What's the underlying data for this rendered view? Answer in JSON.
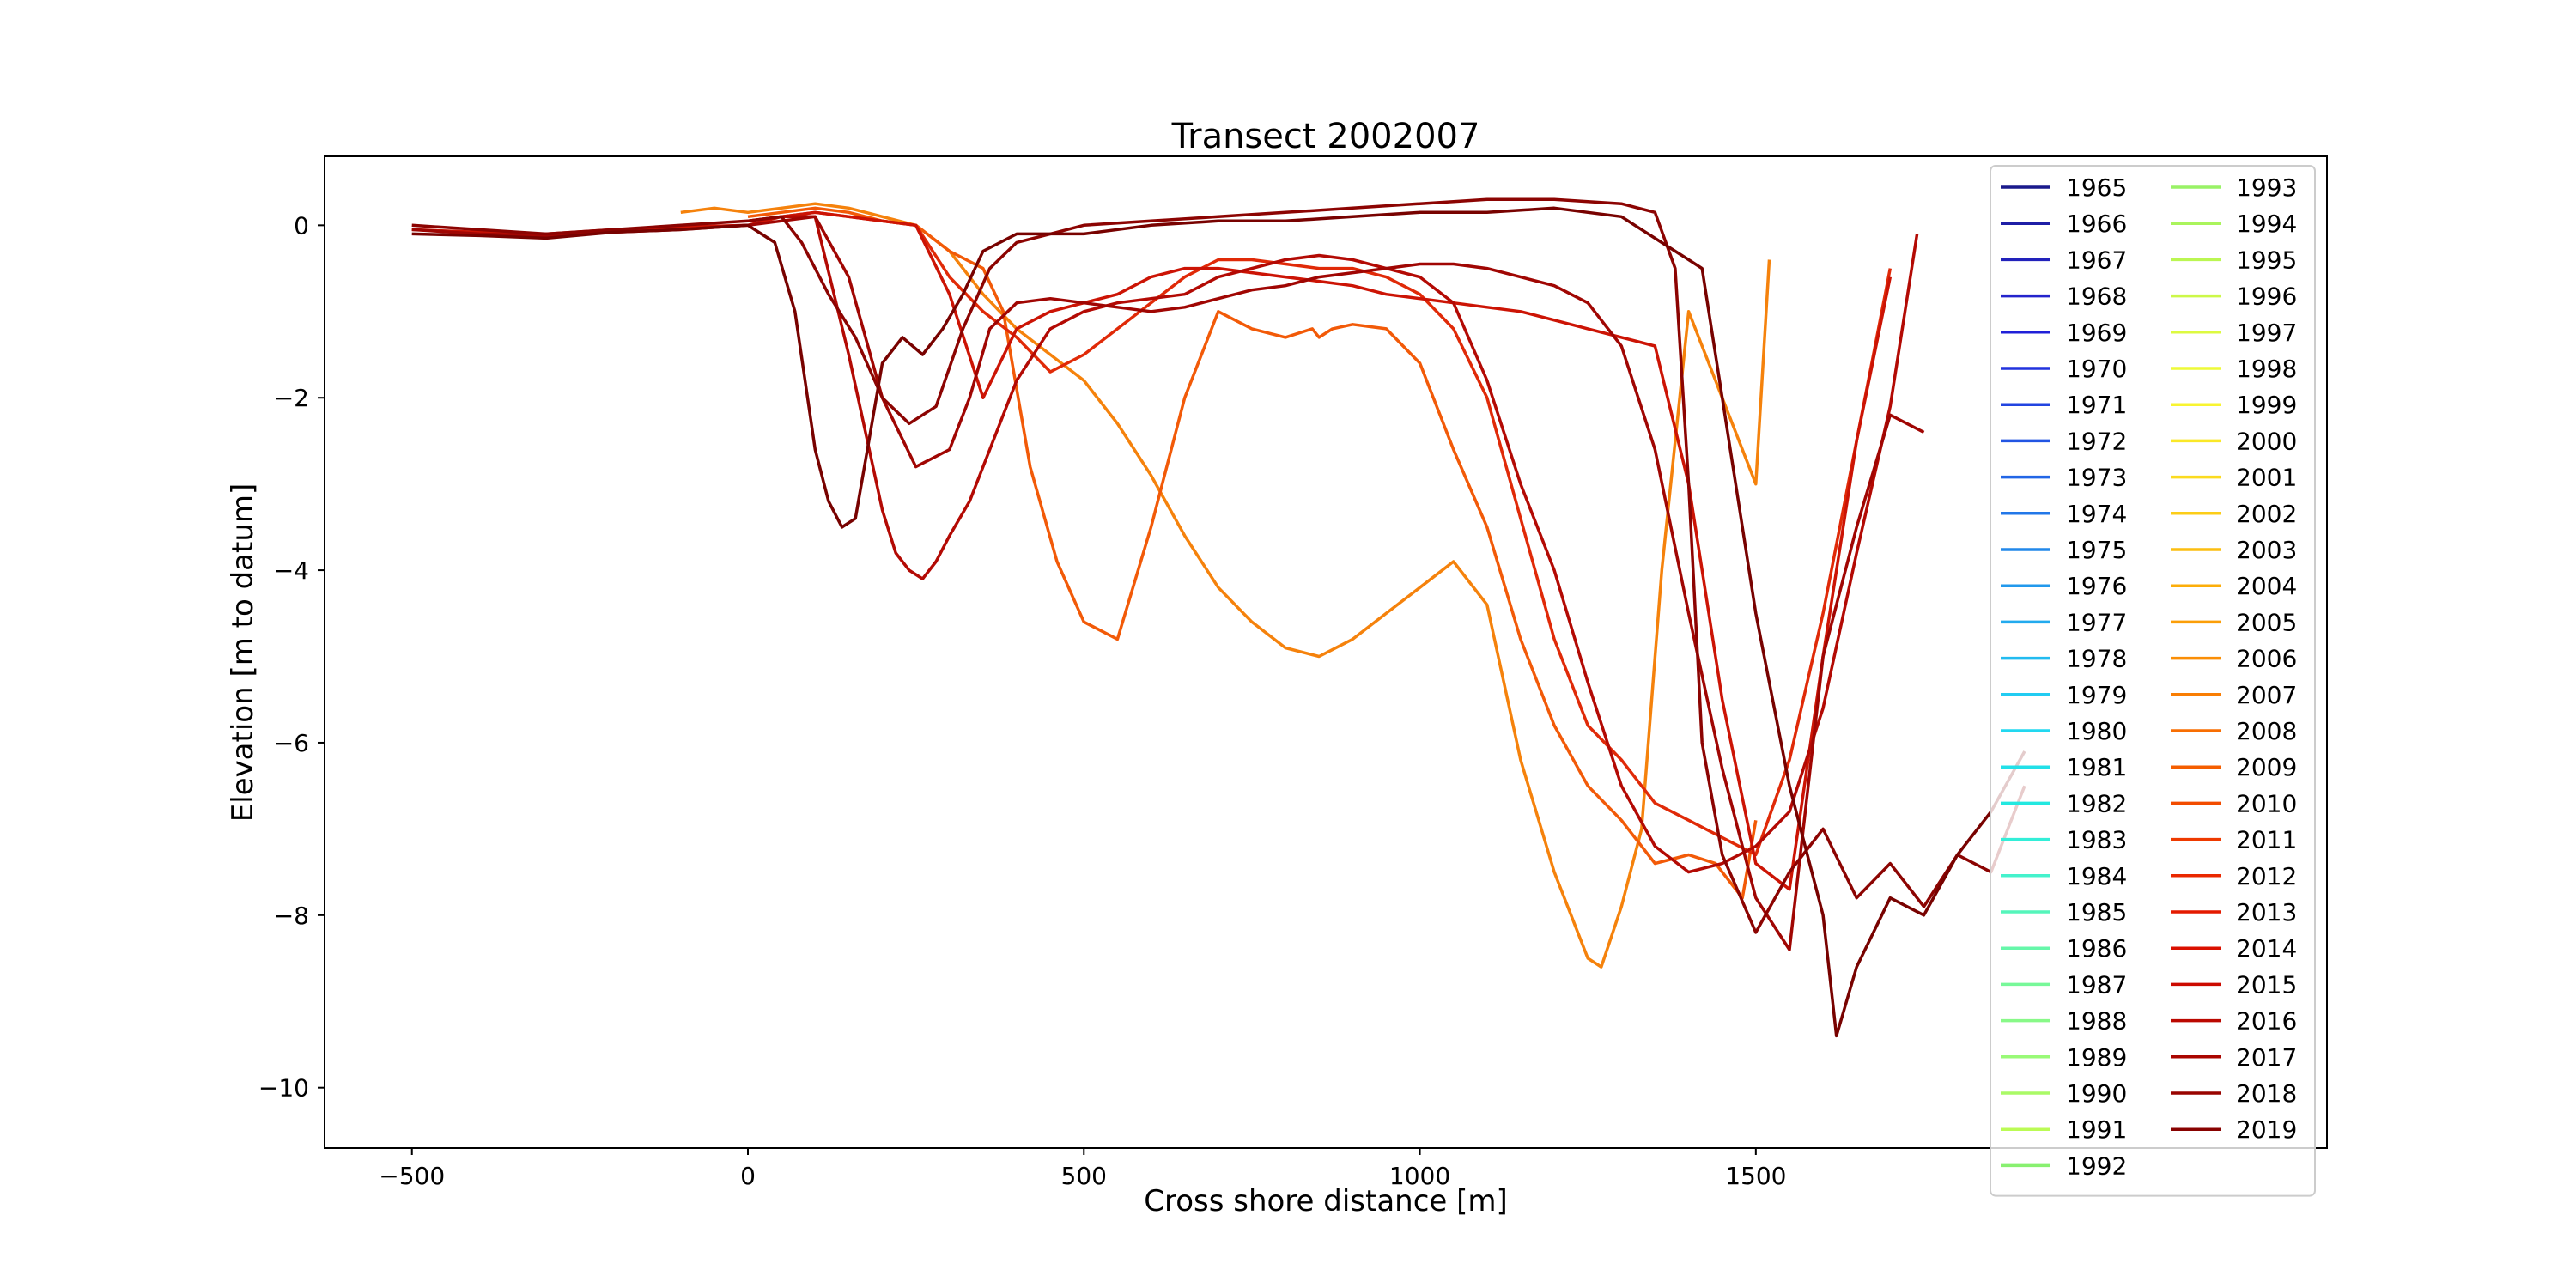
{
  "chart_data": {
    "type": "line",
    "title": "Transect 2002007",
    "xlabel": "Cross shore distance [m]",
    "ylabel": "Elevation [m to datum]",
    "xlim": [
      -630,
      2350
    ],
    "ylim": [
      -10.7,
      0.8
    ],
    "x_ticks": [
      -500,
      0,
      500,
      1000,
      1500
    ],
    "x_tick_labels": [
      "−500",
      "0",
      "500",
      "1000",
      "1500"
    ],
    "y_ticks": [
      0,
      -2,
      -4,
      -6,
      -8,
      -10
    ],
    "y_tick_labels": [
      "0",
      "−2",
      "−4",
      "−6",
      "−8",
      "−10"
    ],
    "grid": false,
    "legend": {
      "placement": "right",
      "columns": 2,
      "entries": [
        "1965",
        "1966",
        "1967",
        "1968",
        "1969",
        "1970",
        "1971",
        "1972",
        "1973",
        "1974",
        "1975",
        "1976",
        "1977",
        "1978",
        "1979",
        "1980",
        "1981",
        "1982",
        "1983",
        "1984",
        "1985",
        "1986",
        "1987",
        "1988",
        "1989",
        "1990",
        "1991",
        "1992",
        "1993",
        "1994",
        "1995",
        "1996",
        "1997",
        "1998",
        "1999",
        "2000",
        "2001",
        "2002",
        "2003",
        "2004",
        "2005",
        "2006",
        "2007",
        "2008",
        "2009",
        "2010",
        "2011",
        "2012",
        "2013",
        "2014",
        "2015",
        "2016",
        "2017",
        "2018",
        "2019"
      ],
      "colors": [
        "#1a1a8c",
        "#1f1fa6",
        "#2222bb",
        "#2424cc",
        "#2020d8",
        "#2233dd",
        "#2244e0",
        "#2255e3",
        "#2266e6",
        "#2277e8",
        "#2288ea",
        "#2299ec",
        "#22aaee",
        "#22bbf0",
        "#22ccf2",
        "#22d8f0",
        "#22e0e8",
        "#22e8e0",
        "#33eed8",
        "#44f2cc",
        "#55f5bb",
        "#66f7aa",
        "#77f899",
        "#88f988",
        "#99fa77",
        "#aafa66",
        "#bbfb55",
        "#88f070",
        "#99f266",
        "#aaf45c",
        "#bbf652",
        "#ccf848",
        "#ddfa40",
        "#eefa38",
        "#f8f430",
        "#fae828",
        "#fbdb20",
        "#fccd18",
        "#fcbe10",
        "#fcae0a",
        "#fb9e08",
        "#fa8e06",
        "#f97e04",
        "#f86e02",
        "#f55e00",
        "#f24c00",
        "#ee3a00",
        "#ea2800",
        "#e41a00",
        "#da1000",
        "#cc0a00",
        "#bb0800",
        "#aa0600",
        "#990400",
        "#880200"
      ]
    },
    "series": [
      {
        "name": "2007",
        "color": "#f5820c",
        "x": [
          -100,
          -50,
          0,
          50,
          100,
          150,
          200,
          250,
          300,
          350,
          400,
          450,
          500,
          550,
          600,
          650,
          700,
          750,
          800,
          850,
          900,
          950,
          1000,
          1050,
          1100,
          1150,
          1200,
          1250,
          1270,
          1300,
          1330,
          1360,
          1400,
          1450,
          1500,
          1520
        ],
        "y": [
          0.15,
          0.2,
          0.15,
          0.2,
          0.25,
          0.2,
          0.1,
          0,
          -0.3,
          -0.8,
          -1.2,
          -1.5,
          -1.8,
          -2.3,
          -2.9,
          -3.6,
          -4.2,
          -4.6,
          -4.9,
          -5.0,
          -4.8,
          -4.5,
          -4.2,
          -3.9,
          -4.4,
          -6.2,
          -7.5,
          -8.5,
          -8.6,
          -7.9,
          -7.0,
          -4.0,
          -1.0,
          -2.0,
          -3.0,
          -0.4
        ]
      },
      {
        "name": "2010",
        "color": "#f25a08",
        "x": [
          0,
          50,
          100,
          150,
          200,
          250,
          300,
          350,
          380,
          420,
          460,
          500,
          550,
          600,
          650,
          700,
          750,
          800,
          840,
          850,
          870,
          900,
          950,
          1000,
          1050,
          1100,
          1150,
          1200,
          1250,
          1300,
          1350,
          1400,
          1440,
          1480,
          1500
        ],
        "y": [
          0.1,
          0.15,
          0.2,
          0.15,
          0.05,
          0,
          -0.3,
          -0.5,
          -1.0,
          -2.8,
          -3.9,
          -4.6,
          -4.8,
          -3.5,
          -2.0,
          -1.0,
          -1.2,
          -1.3,
          -1.2,
          -1.3,
          -1.2,
          -1.15,
          -1.2,
          -1.6,
          -2.6,
          -3.5,
          -4.8,
          -5.8,
          -6.5,
          -6.9,
          -7.4,
          -7.3,
          -7.4,
          -7.8,
          -6.9
        ]
      },
      {
        "name": "2012",
        "color": "#e02a08",
        "x": [
          0,
          50,
          100,
          150,
          200,
          250,
          300,
          350,
          400,
          450,
          500,
          550,
          600,
          650,
          700,
          750,
          800,
          850,
          900,
          950,
          1000,
          1050,
          1100,
          1150,
          1200,
          1250,
          1300,
          1350,
          1400,
          1450,
          1500,
          1550,
          1600,
          1650,
          1700
        ],
        "y": [
          0.05,
          0.1,
          0.15,
          0.1,
          0.05,
          0,
          -0.6,
          -1.0,
          -1.3,
          -1.7,
          -1.5,
          -1.2,
          -0.9,
          -0.6,
          -0.4,
          -0.4,
          -0.45,
          -0.5,
          -0.5,
          -0.6,
          -0.8,
          -1.2,
          -2.0,
          -3.4,
          -4.8,
          -5.8,
          -6.2,
          -6.7,
          -6.9,
          -7.1,
          -7.3,
          -6.2,
          -4.5,
          -2.5,
          -0.5
        ]
      },
      {
        "name": "2014",
        "color": "#cc1405",
        "x": [
          -500,
          -400,
          -300,
          -200,
          -100,
          0,
          50,
          100,
          150,
          200,
          250,
          300,
          350,
          400,
          450,
          500,
          550,
          600,
          650,
          700,
          750,
          800,
          850,
          900,
          950,
          1000,
          1050,
          1100,
          1150,
          1200,
          1250,
          1300,
          1350,
          1400,
          1450,
          1500,
          1550,
          1600,
          1650,
          1700
        ],
        "y": [
          -0.05,
          -0.08,
          -0.1,
          -0.05,
          -0.02,
          0,
          0.1,
          0.15,
          0.1,
          0.05,
          0,
          -0.8,
          -2.0,
          -1.2,
          -1.0,
          -0.9,
          -0.8,
          -0.6,
          -0.5,
          -0.5,
          -0.55,
          -0.6,
          -0.65,
          -0.7,
          -0.8,
          -0.85,
          -0.9,
          -0.95,
          -1.0,
          -1.1,
          -1.2,
          -1.3,
          -1.4,
          -3.0,
          -5.5,
          -7.4,
          -7.7,
          -5.0,
          -2.5,
          -0.6
        ]
      },
      {
        "name": "2016",
        "color": "#b30a04",
        "x": [
          0,
          50,
          100,
          150,
          200,
          220,
          240,
          260,
          280,
          300,
          330,
          360,
          400,
          450,
          500,
          550,
          600,
          650,
          700,
          750,
          800,
          850,
          900,
          950,
          1000,
          1050,
          1100,
          1150,
          1200,
          1250,
          1300,
          1350,
          1400,
          1450,
          1500,
          1550,
          1600,
          1650,
          1700,
          1740
        ],
        "y": [
          0.05,
          0.1,
          0.1,
          -1.5,
          -3.3,
          -3.8,
          -4.0,
          -4.1,
          -3.9,
          -3.6,
          -3.2,
          -2.6,
          -1.8,
          -1.2,
          -1.0,
          -0.9,
          -0.85,
          -0.8,
          -0.6,
          -0.5,
          -0.4,
          -0.35,
          -0.4,
          -0.5,
          -0.6,
          -0.9,
          -1.8,
          -3.0,
          -4.0,
          -5.3,
          -6.5,
          -7.2,
          -7.5,
          -7.4,
          -7.2,
          -6.8,
          -5.6,
          -3.8,
          -2.1,
          -0.1
        ]
      },
      {
        "name": "2017",
        "color": "#a00603",
        "x": [
          -500,
          -400,
          -300,
          -200,
          -100,
          0,
          50,
          100,
          150,
          200,
          250,
          300,
          330,
          360,
          400,
          450,
          500,
          550,
          600,
          650,
          700,
          750,
          800,
          850,
          900,
          950,
          1000,
          1050,
          1100,
          1150,
          1200,
          1250,
          1300,
          1350,
          1400,
          1450,
          1500,
          1550,
          1600,
          1650,
          1700,
          1750
        ],
        "y": [
          -0.05,
          -0.1,
          -0.12,
          -0.08,
          -0.05,
          0,
          0.05,
          0.1,
          -0.6,
          -2.0,
          -2.8,
          -2.6,
          -2.0,
          -1.2,
          -0.9,
          -0.85,
          -0.9,
          -0.95,
          -1.0,
          -0.95,
          -0.85,
          -0.75,
          -0.7,
          -0.6,
          -0.55,
          -0.5,
          -0.45,
          -0.45,
          -0.5,
          -0.6,
          -0.7,
          -0.9,
          -1.4,
          -2.6,
          -4.5,
          -6.3,
          -7.8,
          -8.4,
          -5.0,
          -3.5,
          -2.2,
          -2.4
        ]
      },
      {
        "name": "2018",
        "color": "#8c0402",
        "x": [
          -500,
          -400,
          -300,
          -200,
          -100,
          0,
          50,
          80,
          120,
          160,
          200,
          240,
          280,
          320,
          360,
          400,
          450,
          500,
          600,
          700,
          800,
          900,
          1000,
          1100,
          1200,
          1300,
          1350,
          1380,
          1400,
          1420,
          1450,
          1500,
          1550,
          1600,
          1650,
          1700,
          1750,
          1800,
          1850,
          1900
        ],
        "y": [
          0,
          -0.05,
          -0.1,
          -0.05,
          0,
          0.05,
          0.1,
          -0.2,
          -0.8,
          -1.3,
          -2.0,
          -2.3,
          -2.1,
          -1.2,
          -0.5,
          -0.2,
          -0.1,
          0,
          0.05,
          0.1,
          0.15,
          0.2,
          0.25,
          0.3,
          0.3,
          0.25,
          0.15,
          -0.5,
          -3.0,
          -6.0,
          -7.3,
          -8.2,
          -7.5,
          -7.0,
          -7.8,
          -7.4,
          -7.9,
          -7.3,
          -7.5,
          -6.5
        ]
      },
      {
        "name": "2019",
        "color": "#780200",
        "x": [
          -500,
          -400,
          -300,
          -200,
          -100,
          0,
          40,
          70,
          100,
          120,
          140,
          160,
          180,
          200,
          230,
          260,
          290,
          320,
          350,
          400,
          500,
          600,
          700,
          800,
          900,
          1000,
          1100,
          1200,
          1300,
          1380,
          1400,
          1420,
          1450,
          1500,
          1550,
          1600,
          1620,
          1650,
          1700,
          1750,
          1800,
          1850,
          1900
        ],
        "y": [
          -0.1,
          -0.12,
          -0.15,
          -0.08,
          -0.05,
          0,
          -0.2,
          -1.0,
          -2.6,
          -3.2,
          -3.5,
          -3.4,
          -2.5,
          -1.6,
          -1.3,
          -1.5,
          -1.2,
          -0.8,
          -0.3,
          -0.1,
          -0.1,
          0,
          0.05,
          0.05,
          0.1,
          0.15,
          0.15,
          0.2,
          0.1,
          -0.3,
          -0.4,
          -0.5,
          -2.0,
          -4.5,
          -6.5,
          -8.0,
          -9.4,
          -8.6,
          -7.8,
          -8.0,
          -7.3,
          -6.8,
          -6.1
        ]
      }
    ]
  }
}
